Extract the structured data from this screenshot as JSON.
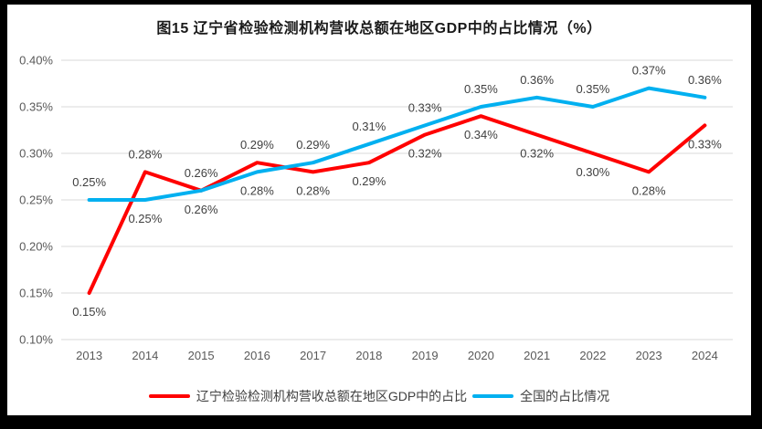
{
  "title": "图15 辽宁省检验检测机构营收总额在地区GDP中的占比情况（%）",
  "colors": {
    "red_series": "#FF0000",
    "blue_series": "#00B0F0",
    "grid": "#D9D9D9",
    "axis_text": "#595959",
    "label_text": "#404040",
    "frame": "#000000",
    "background": "#FFFFFF"
  },
  "chart_data": {
    "type": "line",
    "title": "图15 辽宁省检验检测机构营收总额在地区GDP中的占比情况（%）",
    "categories": [
      "2013",
      "2014",
      "2015",
      "2016",
      "2017",
      "2018",
      "2019",
      "2020",
      "2021",
      "2022",
      "2023",
      "2024"
    ],
    "series": [
      {
        "name": "辽宁检验检测机构营收总额在地区GDP中的占比",
        "color": "#FF0000",
        "values": [
          0.15,
          0.28,
          0.26,
          0.29,
          0.28,
          0.29,
          0.32,
          0.34,
          0.32,
          0.3,
          0.28,
          0.33
        ],
        "labels": [
          "0.15%",
          "0.28%",
          "0.26%",
          "0.29%",
          "0.28%",
          "0.29%",
          "0.32%",
          "0.34%",
          "0.32%",
          "0.30%",
          "0.28%",
          "0.33%"
        ],
        "label_positions": [
          "below",
          "above",
          "above",
          "above",
          "below",
          "below",
          "below",
          "below",
          "below",
          "below",
          "below",
          "below"
        ]
      },
      {
        "name": "全国的占比情况",
        "color": "#00B0F0",
        "values": [
          0.25,
          0.25,
          0.26,
          0.28,
          0.29,
          0.31,
          0.33,
          0.35,
          0.36,
          0.35,
          0.37,
          0.36
        ],
        "labels": [
          "0.25%",
          "0.25%",
          "0.26%",
          "0.28%",
          "0.29%",
          "0.31%",
          "0.33%",
          "0.35%",
          "0.36%",
          "0.35%",
          "0.37%",
          "0.36%"
        ],
        "label_positions": [
          "above",
          "below",
          "below",
          "below",
          "above",
          "above",
          "above",
          "above",
          "above",
          "above",
          "above",
          "above"
        ]
      }
    ],
    "xlabel": "",
    "ylabel": "",
    "ylim": [
      0.1,
      0.4
    ],
    "yticks": {
      "values": [
        0.1,
        0.15,
        0.2,
        0.25,
        0.3,
        0.35,
        0.4
      ],
      "labels": [
        "0.10%",
        "0.15%",
        "0.20%",
        "0.25%",
        "0.30%",
        "0.35%",
        "0.40%"
      ]
    },
    "grid": true,
    "legend_position": "bottom"
  }
}
